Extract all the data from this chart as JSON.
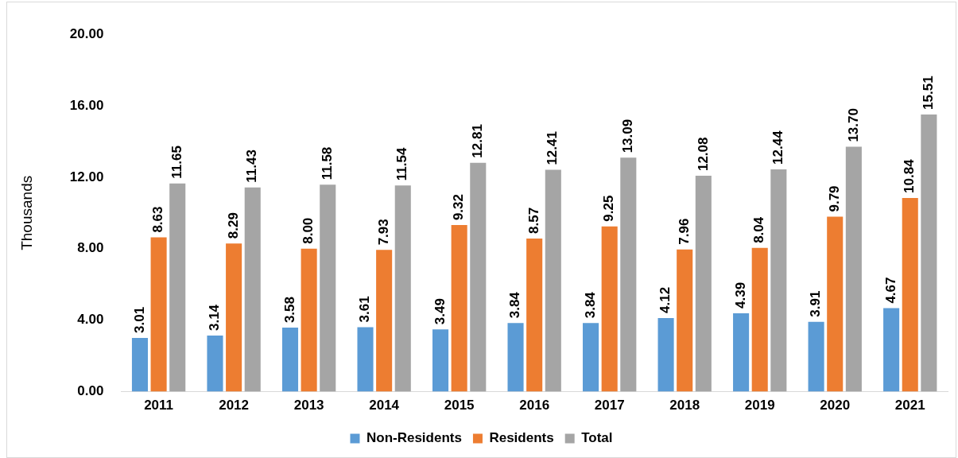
{
  "chart_data": {
    "type": "bar",
    "ylabel": "Thousands",
    "categories": [
      "2011",
      "2012",
      "2013",
      "2014",
      "2015",
      "2016",
      "2017",
      "2018",
      "2019",
      "2020",
      "2021"
    ],
    "series": [
      {
        "name": "Non-Residents",
        "color": "#5b9bd5",
        "values": [
          3.01,
          3.14,
          3.58,
          3.61,
          3.49,
          3.84,
          3.84,
          4.12,
          4.39,
          3.91,
          4.67
        ],
        "value_labels": [
          "3.01",
          "3.14",
          "3.58",
          "3.61",
          "3.49",
          "3.84",
          "3.84",
          "4.12",
          "4.39",
          "3.91",
          "4.67"
        ]
      },
      {
        "name": "Residents",
        "color": "#ed7d31",
        "values": [
          8.63,
          8.29,
          8.0,
          7.93,
          9.32,
          8.57,
          9.25,
          7.96,
          8.04,
          9.79,
          10.84
        ],
        "value_labels": [
          "8.63",
          "8.29",
          "8.00",
          "7.93",
          "9.32",
          "8.57",
          "9.25",
          "7.96",
          "8.04",
          "9.79",
          "10.84"
        ]
      },
      {
        "name": "Total",
        "color": "#a5a5a5",
        "values": [
          11.65,
          11.43,
          11.58,
          11.54,
          12.81,
          12.41,
          13.09,
          12.08,
          12.44,
          13.7,
          15.51
        ],
        "value_labels": [
          "11.65",
          "11.43",
          "11.58",
          "11.54",
          "12.81",
          "12.41",
          "13.09",
          "12.08",
          "12.44",
          "13.70",
          "15.51"
        ]
      }
    ],
    "ylim": [
      0,
      20
    ],
    "yticks": [
      {
        "value": 0,
        "label": "0.00"
      },
      {
        "value": 4,
        "label": "4.00"
      },
      {
        "value": 8,
        "label": "8.00"
      },
      {
        "value": 12,
        "label": "12.00"
      },
      {
        "value": 16,
        "label": "16.00"
      },
      {
        "value": 20,
        "label": "20.00"
      }
    ],
    "grid": false,
    "legend": "bottom"
  }
}
